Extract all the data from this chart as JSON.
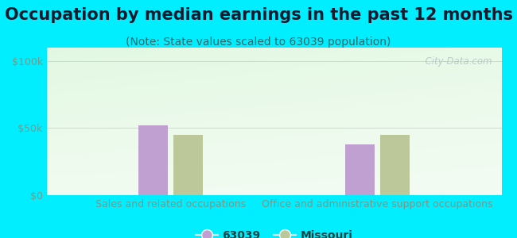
{
  "title": "Occupation by median earnings in the past 12 months",
  "subtitle": "(Note: State values scaled to 63039 population)",
  "categories": [
    "Sales and related occupations",
    "Office and administrative support occupations"
  ],
  "values_63039": [
    52000,
    38000
  ],
  "values_missouri": [
    45000,
    45000
  ],
  "bar_color_63039": "#c0a0d0",
  "bar_color_missouri": "#bcc89a",
  "ylim": [
    0,
    110000
  ],
  "yticks": [
    0,
    50000,
    100000
  ],
  "ytick_labels": [
    "$0",
    "$50k",
    "$100k"
  ],
  "background_outer": "#00eeff",
  "watermark": "  City-Data.com",
  "legend_label_1": "63039",
  "legend_label_2": "Missouri",
  "bar_width": 0.07,
  "title_fontsize": 15,
  "subtitle_fontsize": 10,
  "axis_label_fontsize": 9,
  "tick_fontsize": 9,
  "title_color": "#1a1a2e",
  "subtitle_color": "#336666",
  "tick_color": "#779988",
  "cat_label_color": "#779988"
}
